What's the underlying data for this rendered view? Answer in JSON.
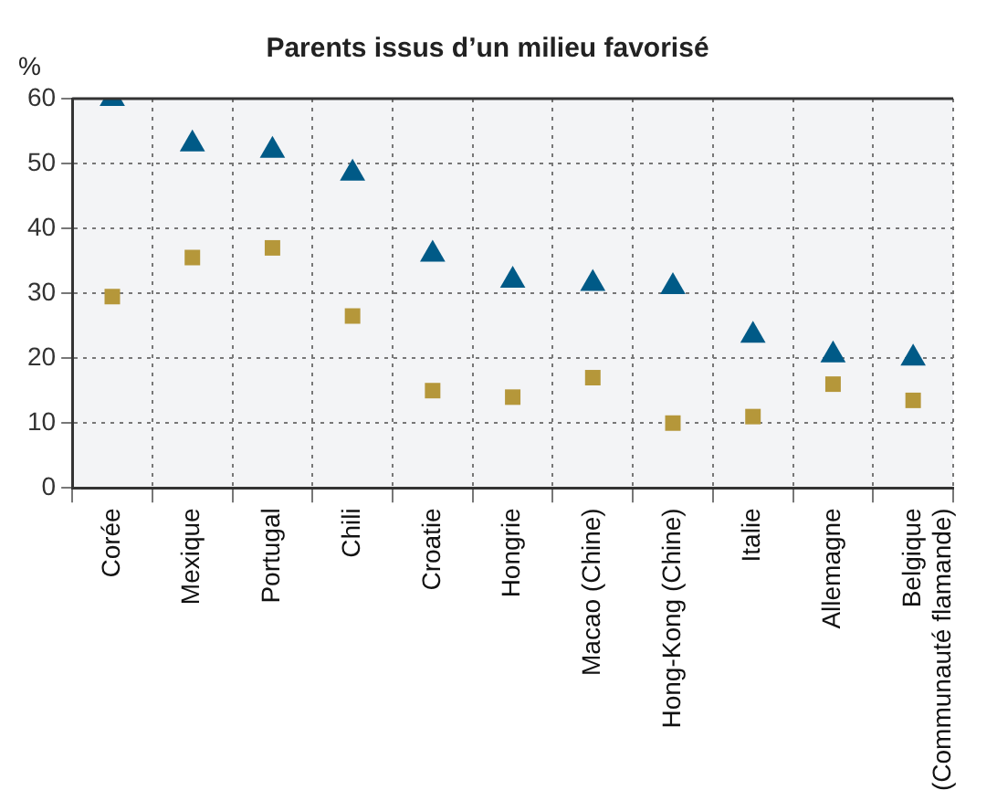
{
  "chart_data": {
    "type": "scatter",
    "title": "Parents issus d’un milieu favorisé",
    "ylabel": "%",
    "categories": [
      "Corée",
      "Mexique",
      "Portugal",
      "Chili",
      "Croatie",
      "Hongrie",
      "Macao (Chine)",
      "Hong-Kong (Chine)",
      "Italie",
      "Allemagne",
      "Belgique (Communauté flamande)"
    ],
    "series": [
      {
        "color": "#005a87",
        "marker": "triangle",
        "values": [
          60,
          53,
          52,
          48.5,
          36,
          32,
          31.5,
          31,
          23.5,
          20.5,
          20
        ]
      },
      {
        "color": "#b5973a",
        "marker": "square",
        "values": [
          29.5,
          35.5,
          37,
          26.5,
          15,
          14,
          17,
          10,
          11,
          16,
          13.5
        ]
      }
    ],
    "ylim": [
      0,
      60
    ],
    "yticks": [
      0,
      10,
      20,
      30,
      40,
      50,
      60
    ],
    "grid": true,
    "legend": false
  }
}
